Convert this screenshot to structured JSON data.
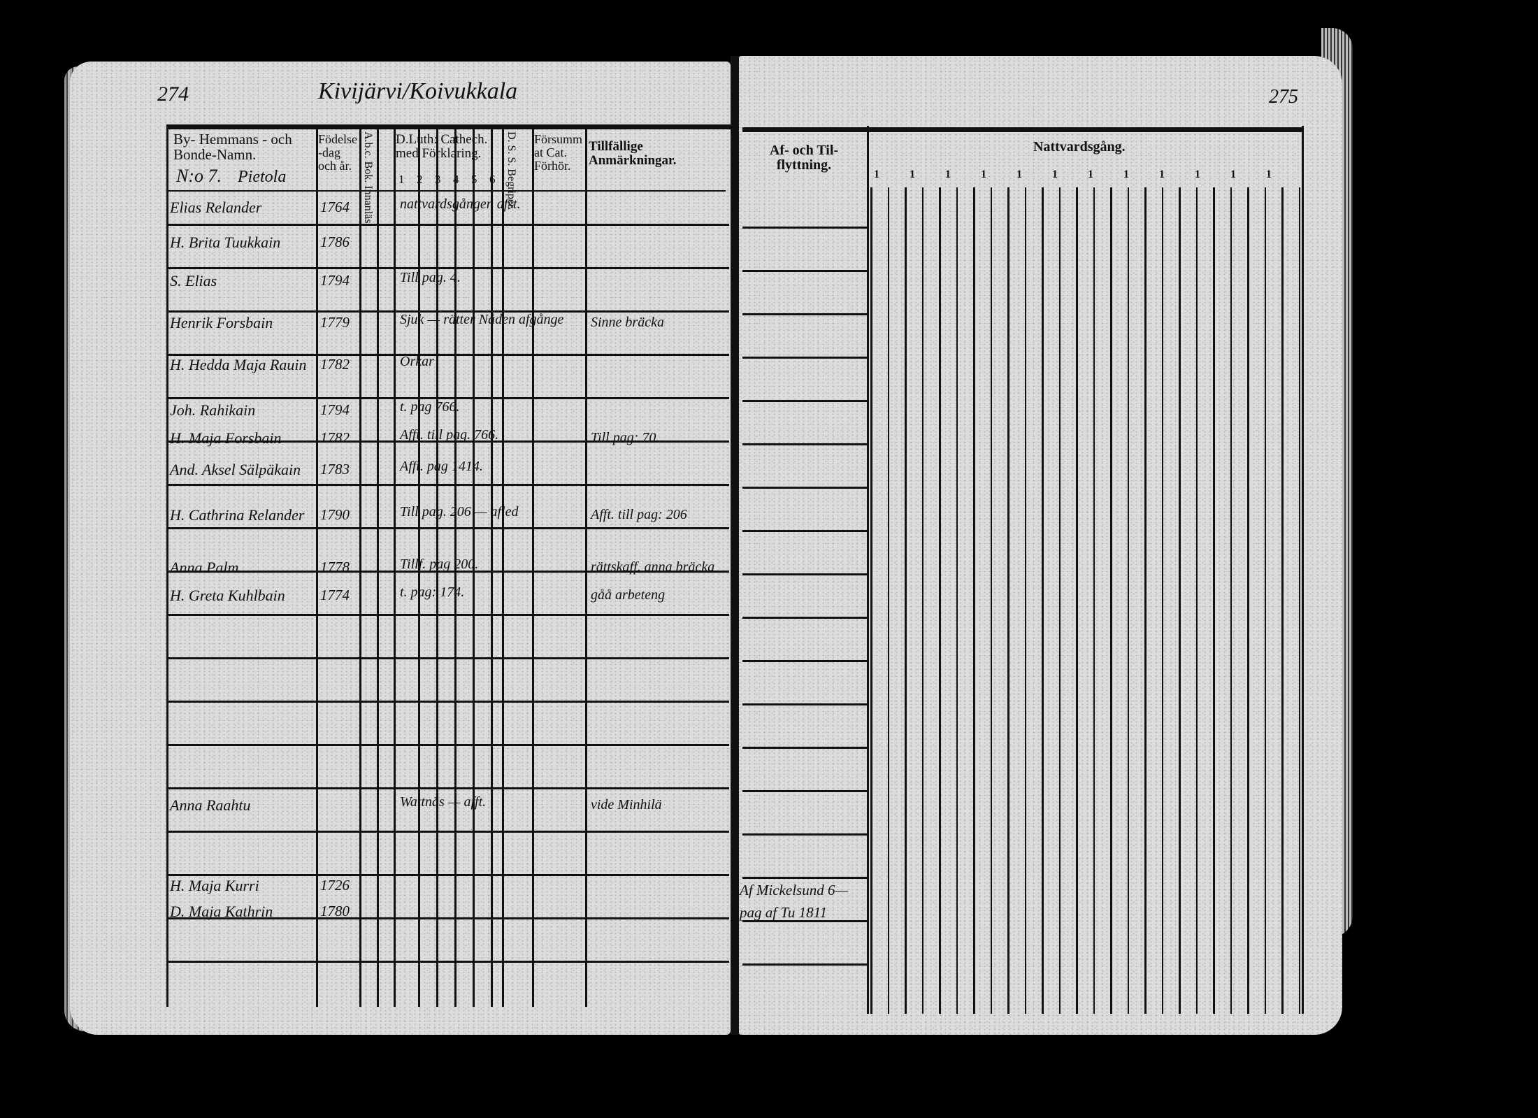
{
  "left_page": {
    "page_number": "274",
    "village_title": "Kivijärvi/Koivukkala",
    "headers": {
      "name": "By- Hemmans - och Bonde-Namn.",
      "number": "N:o 7.",
      "farm": "Pietola",
      "birth": "Födelse-dag och år.",
      "abc": "A.b.c. Bok. Innanläs.",
      "catechism": "D.Luth: Cathech. med Förklaring.",
      "catechism_cols": [
        "1",
        "2",
        "3",
        "4",
        "5",
        "6"
      ],
      "ds": "D. S. S. Begriper.",
      "forsummat": "Försummat Cat. Förhör.",
      "remarks": "Tillfällige Anmärkningar."
    },
    "entries": [
      {
        "name": "Elias Relander",
        "year": "1764",
        "note": "nattvardsgången afst.",
        "remark": ""
      },
      {
        "name": "H. Brita Tuukkain",
        "year": "1786",
        "note": "",
        "remark": ""
      },
      {
        "name": "S. Elias",
        "year": "1794",
        "note": "Till pag. 4.",
        "remark": ""
      },
      {
        "name": "Henrik Forsbain",
        "year": "1779",
        "note": "Sjuk — rätter Nåden afgånge",
        "remark": "Sinne bräcka"
      },
      {
        "name": "H. Hedda Maja Rauin",
        "year": "1782",
        "note": "Orkar",
        "remark": ""
      },
      {
        "name": "Joh. Rahikain",
        "year": "1794",
        "note": "t. pag 766.",
        "remark": ""
      },
      {
        "name": "H. Maja Forsbain",
        "year": "1782",
        "note": "Afft. till pag. 766.",
        "remark": "Till pag: 70."
      },
      {
        "name": "And. Aksel Sälpäkain",
        "year": "1783",
        "note": "Afft. pag 1414.",
        "remark": ""
      },
      {
        "name": "H. Cathrina Relander",
        "year": "1790",
        "note": "Till pag. 206 — afled",
        "remark": "Afft. till pag: 206"
      },
      {
        "name": "Anna Palm",
        "year": "1778",
        "note": "Tillf. pag 200.",
        "remark": "rättskaff. anna bräcka"
      },
      {
        "name": "H. Greta Kuhlbain",
        "year": "1774",
        "note": "t. pag: 174.",
        "remark": "gåå arbeteng"
      },
      {
        "name": "Anna Raahtu",
        "year": "",
        "note": "Wattnäs — afft.",
        "remark": "vide Minhilä"
      },
      {
        "name": "H. Maja Kurri",
        "year": "1726",
        "note": "",
        "remark": ""
      },
      {
        "name": "D. Maja Kathrin",
        "year": "1780",
        "note": "",
        "remark": ""
      }
    ]
  },
  "right_page": {
    "page_number": "275",
    "headers": {
      "moving": "Af- och Til- flyttning.",
      "communion": "Nattvardsgång.",
      "communion_cols": [
        "1",
        "1",
        "1",
        "1",
        "1",
        "1",
        "1",
        "1",
        "1",
        "1",
        "1",
        "1"
      ]
    },
    "moving_note": [
      "Af Mickelsund 6—",
      "pag af Tu 1811"
    ]
  }
}
